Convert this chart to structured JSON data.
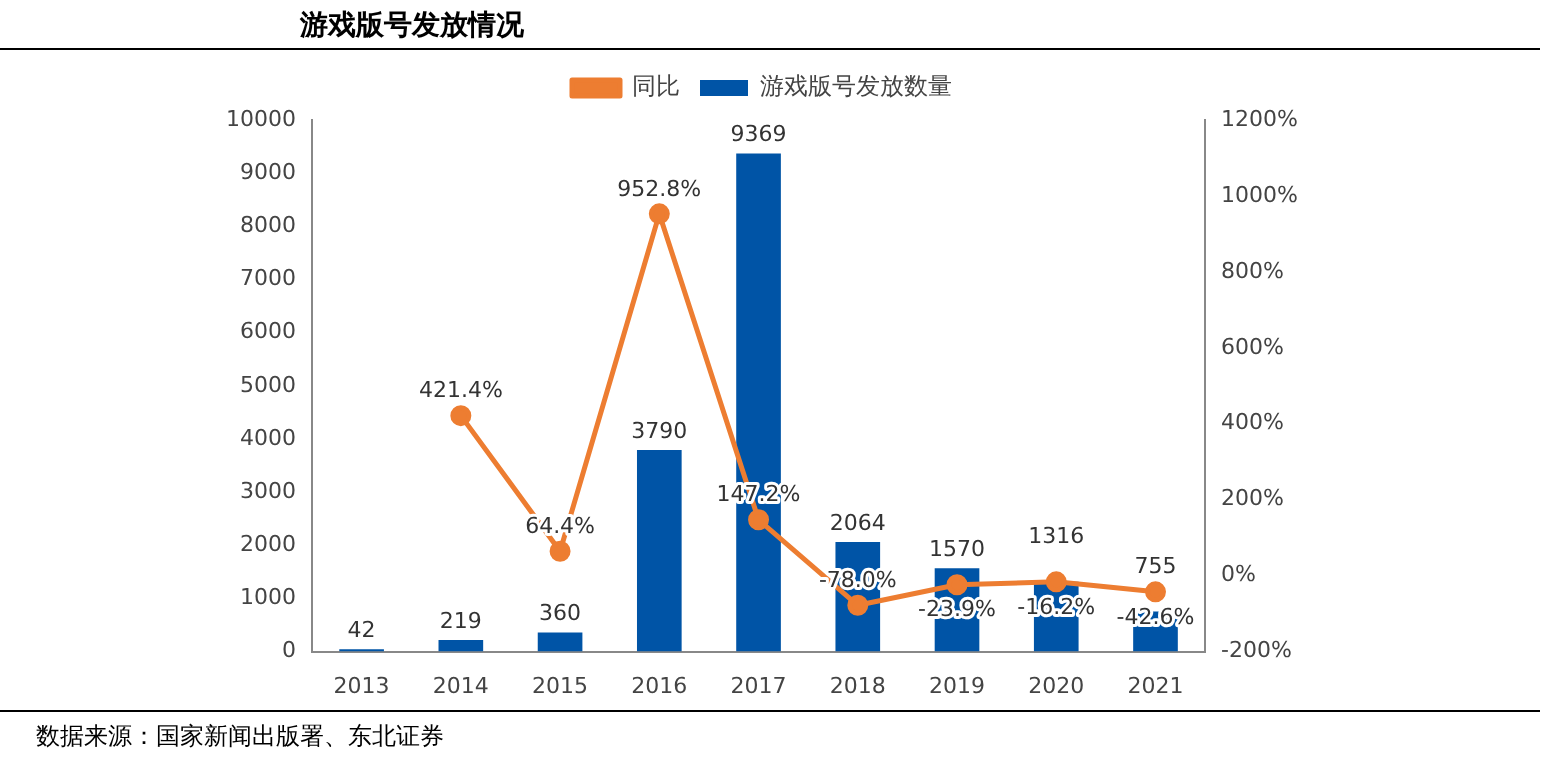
{
  "chart_data": {
    "type": "bar",
    "title": "游戏版号发放情况",
    "categories": [
      "2013",
      "2014",
      "2015",
      "2016",
      "2017",
      "2018",
      "2019",
      "2020",
      "2021"
    ],
    "series": [
      {
        "name": "游戏版号发放数量",
        "color": "#0054a6",
        "values": [
          42,
          219,
          360,
          3790,
          9369,
          2064,
          1570,
          1316,
          755
        ]
      },
      {
        "name": "同比",
        "type": "line",
        "axis": "y2",
        "color": "#ed7d31",
        "marker": "circle",
        "values": [
          null,
          421.4,
          64.4,
          952.8,
          147.2,
          -78.0,
          -23.9,
          -16.2,
          -42.6
        ],
        "value_labels": [
          null,
          "421.4%",
          "64.4%",
          "952.8%",
          "147.2%",
          "-78.0%",
          "-23.9%",
          "-16.2%",
          "-42.6%"
        ]
      }
    ],
    "ylim": [
      0,
      10000
    ],
    "yticks": [
      0,
      1000,
      2000,
      3000,
      4000,
      5000,
      6000,
      7000,
      8000,
      9000,
      10000
    ],
    "y2lim": [
      -200,
      1200
    ],
    "y2ticks": [
      {
        "value": -200,
        "label": "-200%"
      },
      {
        "value": 0,
        "label": "0%"
      },
      {
        "value": 200,
        "label": "200%"
      },
      {
        "value": 400,
        "label": "400%"
      },
      {
        "value": 600,
        "label": "600%"
      },
      {
        "value": 800,
        "label": "800%"
      },
      {
        "value": 1000,
        "label": "1000%"
      },
      {
        "value": 1200,
        "label": "1200%"
      }
    ],
    "data_labels": true,
    "grid": false,
    "legend": "top",
    "annotations": [
      "数据来源：国家新闻出版署、东北证券"
    ]
  }
}
